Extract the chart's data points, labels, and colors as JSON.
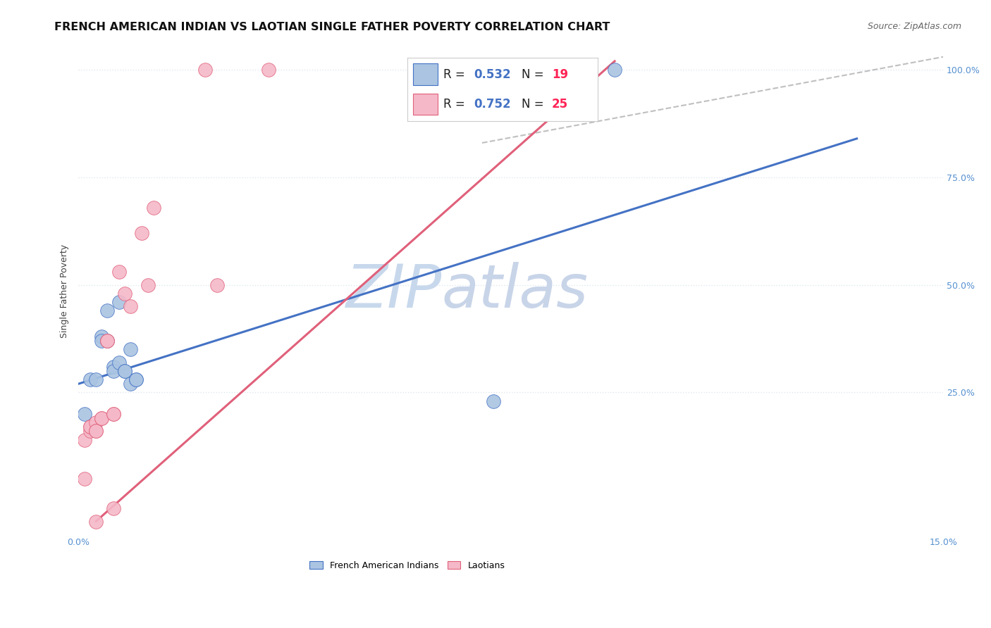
{
  "title": "FRENCH AMERICAN INDIAN VS LAOTIAN SINGLE FATHER POVERTY CORRELATION CHART",
  "source": "Source: ZipAtlas.com",
  "ylabel_label": "Single Father Poverty",
  "xlim": [
    0.0,
    0.15
  ],
  "ylim": [
    -0.08,
    1.05
  ],
  "yaxis_min_display": 0.0,
  "blue_R": "0.532",
  "blue_N": "19",
  "pink_R": "0.752",
  "pink_N": "25",
  "blue_scatter": [
    [
      0.001,
      0.2
    ],
    [
      0.002,
      0.28
    ],
    [
      0.003,
      0.28
    ],
    [
      0.004,
      0.38
    ],
    [
      0.004,
      0.37
    ],
    [
      0.005,
      0.44
    ],
    [
      0.005,
      0.37
    ],
    [
      0.006,
      0.31
    ],
    [
      0.006,
      0.3
    ],
    [
      0.007,
      0.46
    ],
    [
      0.007,
      0.32
    ],
    [
      0.008,
      0.3
    ],
    [
      0.008,
      0.3
    ],
    [
      0.009,
      0.35
    ],
    [
      0.009,
      0.27
    ],
    [
      0.01,
      0.28
    ],
    [
      0.01,
      0.28
    ],
    [
      0.072,
      0.23
    ],
    [
      0.093,
      1.0
    ]
  ],
  "pink_scatter": [
    [
      0.001,
      0.14
    ],
    [
      0.001,
      0.05
    ],
    [
      0.002,
      0.16
    ],
    [
      0.002,
      0.17
    ],
    [
      0.002,
      0.17
    ],
    [
      0.003,
      0.18
    ],
    [
      0.003,
      0.16
    ],
    [
      0.003,
      0.16
    ],
    [
      0.004,
      0.19
    ],
    [
      0.004,
      0.19
    ],
    [
      0.005,
      0.37
    ],
    [
      0.005,
      0.37
    ],
    [
      0.006,
      -0.02
    ],
    [
      0.006,
      0.2
    ],
    [
      0.006,
      0.2
    ],
    [
      0.007,
      0.53
    ],
    [
      0.008,
      0.48
    ],
    [
      0.009,
      0.45
    ],
    [
      0.011,
      0.62
    ],
    [
      0.012,
      0.5
    ],
    [
      0.013,
      0.68
    ],
    [
      0.024,
      0.5
    ],
    [
      0.033,
      1.0
    ],
    [
      0.022,
      1.0
    ],
    [
      0.003,
      -0.05
    ]
  ],
  "blue_line_x": [
    0.0,
    0.135
  ],
  "blue_line_y": [
    0.27,
    0.84
  ],
  "pink_line_x": [
    0.003,
    0.093
  ],
  "pink_line_y": [
    -0.05,
    1.02
  ],
  "diag_line_x": [
    0.07,
    0.15
  ],
  "diag_line_y": [
    0.83,
    1.03
  ],
  "blue_color": "#aac4e2",
  "blue_line_color": "#4472c4",
  "pink_color": "#f5b8c8",
  "pink_line_color": "#e0607a",
  "watermark_zip_color": "#c8d8ec",
  "watermark_atlas_color": "#c8d4e8",
  "background_color": "#ffffff",
  "grid_color": "#dde8f0",
  "right_tick_color": "#5590d0",
  "title_fontsize": 11.5,
  "source_fontsize": 9,
  "axis_label_fontsize": 9,
  "tick_fontsize": 9,
  "legend_fontsize": 12,
  "watermark_fontsize": 62
}
